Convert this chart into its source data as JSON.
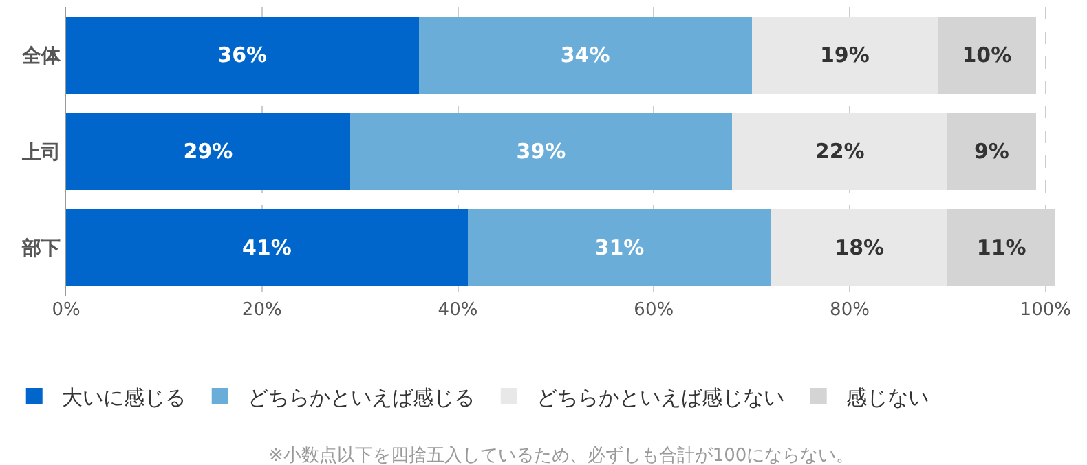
{
  "chart_data": {
    "type": "bar",
    "orientation": "horizontal",
    "stacked": true,
    "categories": [
      "全体",
      "上司",
      "部下"
    ],
    "series": [
      {
        "name": "大いに感じる",
        "color": "#0066cc",
        "values": [
          36,
          29,
          41
        ],
        "value_labels": [
          "36%",
          "29%",
          "41%"
        ]
      },
      {
        "name": "どちらかといえば感じる",
        "color": "#6aadd8",
        "values": [
          34,
          39,
          31
        ],
        "value_labels": [
          "34%",
          "39%",
          "31%"
        ]
      },
      {
        "name": "どちらかといえば感じない",
        "color": "#e8e8e8",
        "values": [
          19,
          22,
          18
        ],
        "value_labels": [
          "19%",
          "22%",
          "18%"
        ]
      },
      {
        "name": "感じない",
        "color": "#d4d4d4",
        "values": [
          10,
          9,
          11
        ],
        "value_labels": [
          "10%",
          "9%",
          "11%"
        ]
      }
    ],
    "xlim": [
      0,
      101
    ],
    "xticks": [
      {
        "value": 0,
        "label": "0%"
      },
      {
        "value": 20,
        "label": "20%"
      },
      {
        "value": 40,
        "label": "40%"
      },
      {
        "value": 60,
        "label": "60%"
      },
      {
        "value": 80,
        "label": "80%"
      },
      {
        "value": 100,
        "label": "100%"
      }
    ],
    "grid": "x",
    "legend": "bottom",
    "annotations": [
      "※小数点以下を四捨五入しているため、必ずしも合計が100にならない。"
    ]
  }
}
